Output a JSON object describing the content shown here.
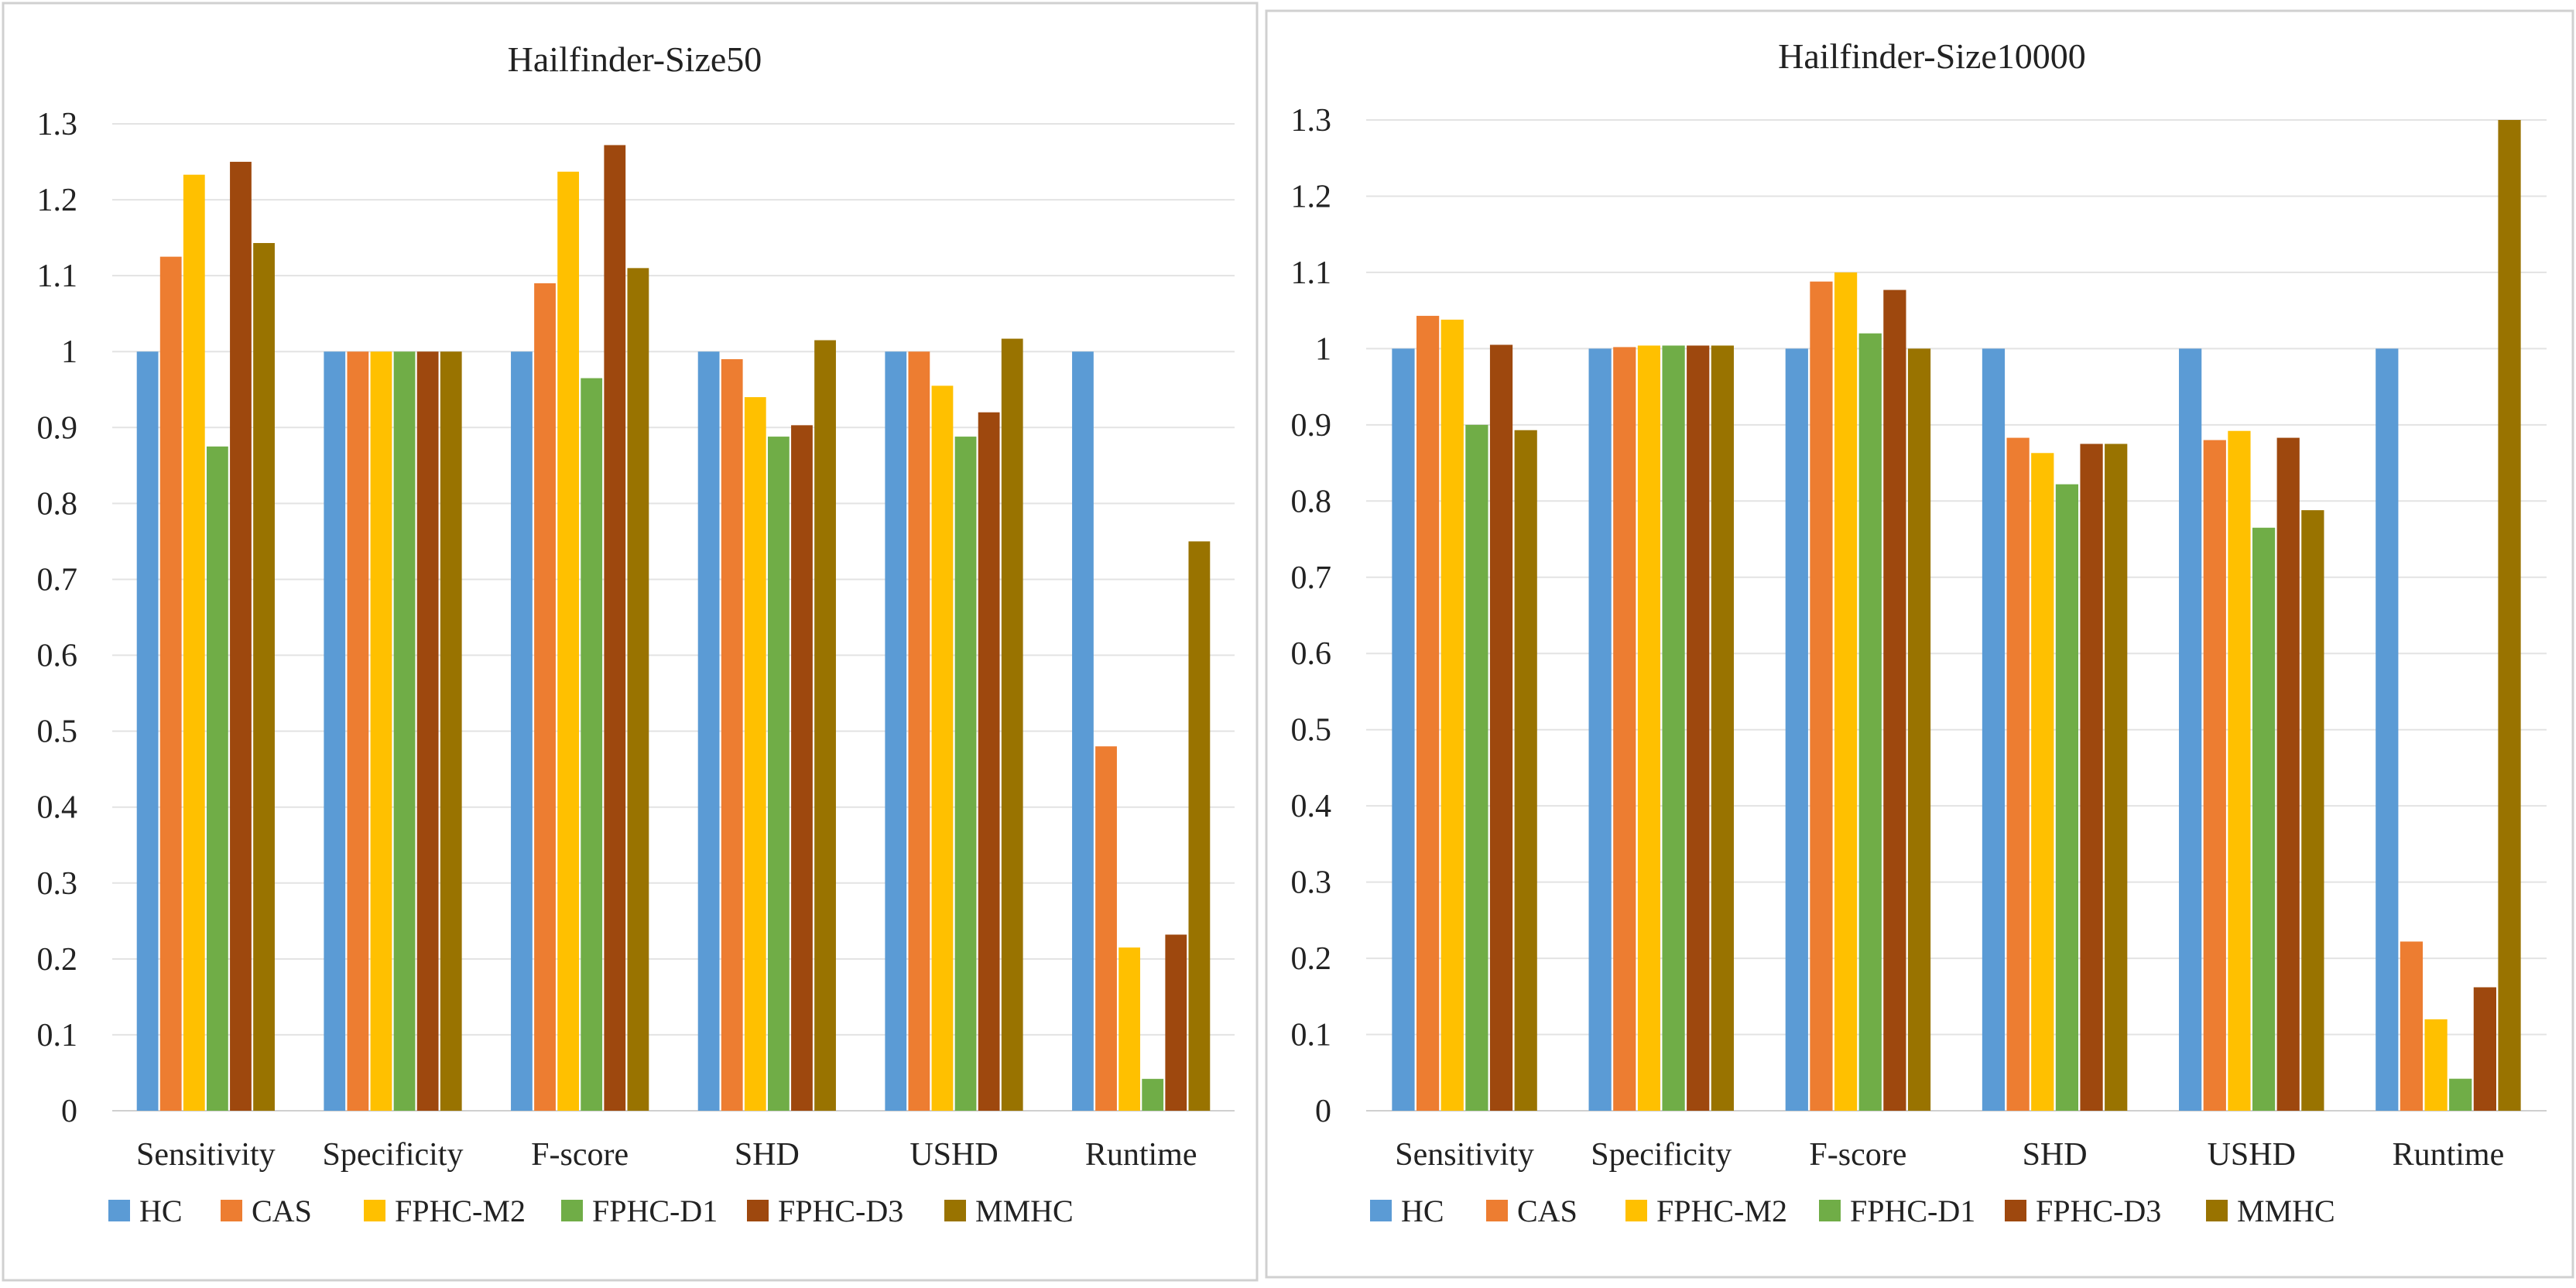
{
  "chart_data": [
    {
      "type": "bar",
      "title": "Hailfinder-Size50",
      "categories": [
        "Sensitivity",
        "Specificity",
        "F-score",
        "SHD",
        "USHD",
        "Runtime"
      ],
      "ylim": [
        0,
        1.3
      ],
      "yticks": [
        "0",
        "0.1",
        "0.2",
        "0.3",
        "0.4",
        "0.5",
        "0.6",
        "0.7",
        "0.8",
        "0.9",
        "1",
        "1.1",
        "1.2",
        "1.3"
      ],
      "grid": true,
      "legend_position": "bottom",
      "series": [
        {
          "name": "HC",
          "color": "#5b9bd5",
          "values": [
            1.0,
            1.0,
            1.0,
            1.0,
            1.0,
            1.0
          ]
        },
        {
          "name": "CAS",
          "color": "#ed7d31",
          "values": [
            1.125,
            1.0,
            1.09,
            0.99,
            1.0,
            0.48
          ]
        },
        {
          "name": "FPHC-M2",
          "color": "#ffc000",
          "values": [
            1.233,
            1.0,
            1.237,
            0.94,
            0.955,
            0.215
          ]
        },
        {
          "name": "FPHC-D1",
          "color": "#70ad47",
          "values": [
            0.875,
            1.0,
            0.965,
            0.888,
            0.888,
            0.042
          ]
        },
        {
          "name": "FPHC-D3",
          "color": "#9e480e",
          "values": [
            1.25,
            1.0,
            1.272,
            0.903,
            0.92,
            0.232
          ]
        },
        {
          "name": "MMHC",
          "color": "#997300",
          "values": [
            1.143,
            1.0,
            1.11,
            1.015,
            1.017,
            0.75
          ]
        }
      ]
    },
    {
      "type": "bar",
      "title": "Hailfinder-Size10000",
      "categories": [
        "Sensitivity",
        "Specificity",
        "F-score",
        "SHD",
        "USHD",
        "Runtime"
      ],
      "ylim": [
        0,
        1.3
      ],
      "yticks": [
        "0",
        "0.1",
        "0.2",
        "0.3",
        "0.4",
        "0.5",
        "0.6",
        "0.7",
        "0.8",
        "0.9",
        "1",
        "1.1",
        "1.2",
        "1.3"
      ],
      "grid": true,
      "legend_position": "bottom",
      "series": [
        {
          "name": "HC",
          "color": "#5b9bd5",
          "values": [
            1.0,
            1.0,
            1.0,
            1.0,
            1.0,
            1.0
          ]
        },
        {
          "name": "CAS",
          "color": "#ed7d31",
          "values": [
            1.043,
            1.002,
            1.088,
            0.883,
            0.88,
            0.222
          ]
        },
        {
          "name": "FPHC-M2",
          "color": "#ffc000",
          "values": [
            1.038,
            1.004,
            1.1,
            0.863,
            0.892,
            0.12
          ]
        },
        {
          "name": "FPHC-D1",
          "color": "#70ad47",
          "values": [
            0.9,
            1.004,
            1.02,
            0.822,
            0.765,
            0.042
          ]
        },
        {
          "name": "FPHC-D3",
          "color": "#9e480e",
          "values": [
            1.005,
            1.004,
            1.077,
            0.875,
            0.883,
            0.162
          ]
        },
        {
          "name": "MMHC",
          "color": "#997300",
          "values": [
            0.893,
            1.004,
            1.0,
            0.875,
            0.788,
            1.3
          ]
        }
      ]
    }
  ]
}
